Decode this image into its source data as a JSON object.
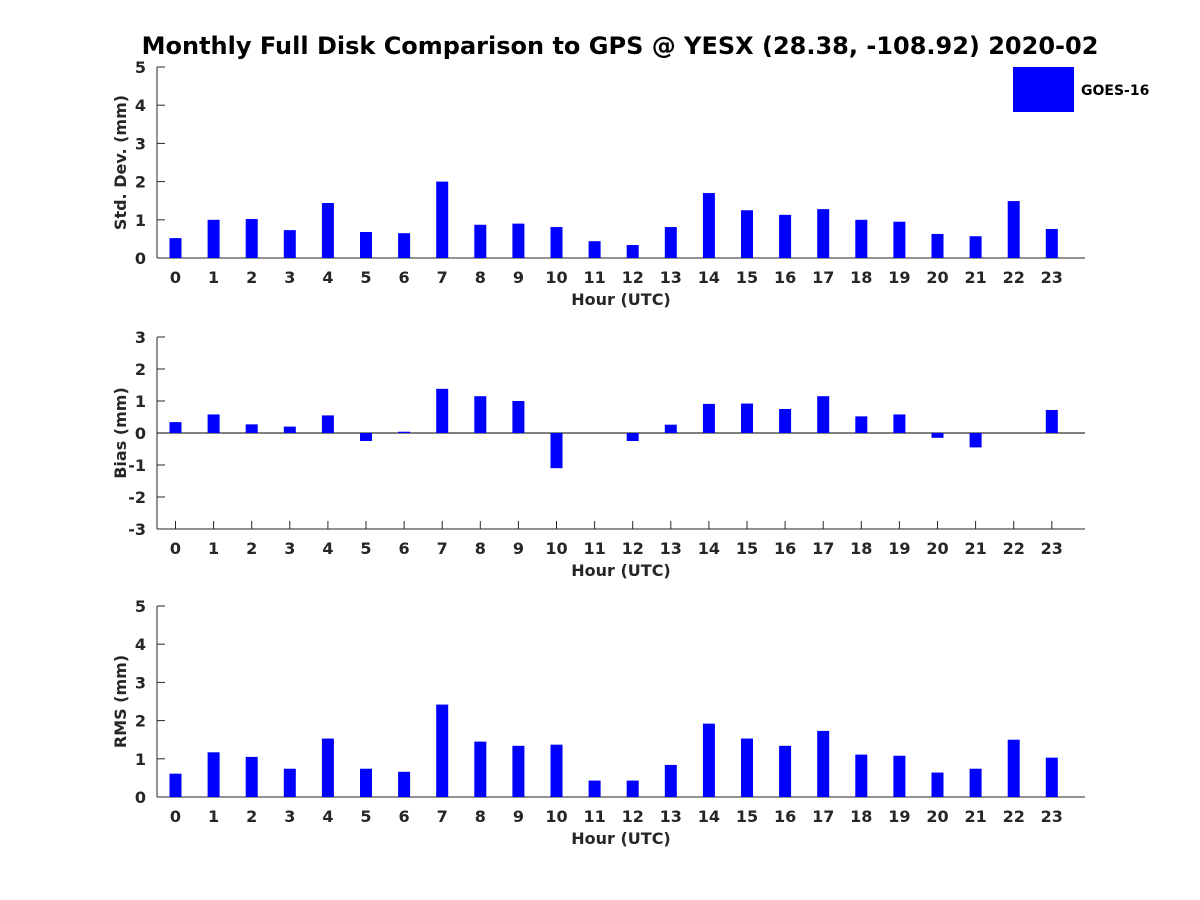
{
  "title": "Monthly Full Disk Comparison to GPS @ YESX (28.38, -108.92) 2020-02",
  "legend": {
    "label": "GOES-16",
    "color": "#0000ff"
  },
  "chart_data": [
    {
      "type": "bar",
      "name": "std-dev",
      "title": "Monthly Full Disk Comparison to GPS @ YESX (28.38, -108.92) 2020-02",
      "xlabel": "Hour (UTC)",
      "ylabel": "Std. Dev. (mm)",
      "ylim": [
        0,
        5
      ],
      "yticks": [
        "0",
        "1",
        "2",
        "3",
        "4",
        "5"
      ],
      "categories": [
        "0",
        "1",
        "2",
        "3",
        "4",
        "5",
        "6",
        "7",
        "8",
        "9",
        "10",
        "11",
        "12",
        "13",
        "14",
        "15",
        "16",
        "17",
        "18",
        "19",
        "20",
        "21",
        "22",
        "23"
      ],
      "series": [
        {
          "name": "GOES-16",
          "values": [
            0.52,
            1.0,
            1.02,
            0.73,
            1.44,
            0.68,
            0.65,
            2.0,
            0.87,
            0.9,
            0.81,
            0.44,
            0.34,
            0.81,
            1.7,
            1.25,
            1.13,
            1.28,
            1.0,
            0.95,
            0.63,
            0.57,
            1.49,
            0.76
          ]
        }
      ],
      "legend": "top-right"
    },
    {
      "type": "bar",
      "name": "bias",
      "xlabel": "Hour (UTC)",
      "ylabel": "Bias (mm)",
      "ylim": [
        -3,
        3
      ],
      "yticks": [
        "-3",
        "-2",
        "-1",
        "0",
        "1",
        "2",
        "3"
      ],
      "zero_line": true,
      "categories": [
        "0",
        "1",
        "2",
        "3",
        "4",
        "5",
        "6",
        "7",
        "8",
        "9",
        "10",
        "11",
        "12",
        "13",
        "14",
        "15",
        "16",
        "17",
        "18",
        "19",
        "20",
        "21",
        "22",
        "23"
      ],
      "series": [
        {
          "name": "GOES-16",
          "values": [
            0.34,
            0.58,
            0.27,
            0.2,
            0.55,
            -0.25,
            0.04,
            1.38,
            1.15,
            1.0,
            -1.1,
            0.0,
            -0.25,
            0.26,
            0.91,
            0.92,
            0.75,
            1.15,
            0.52,
            0.58,
            -0.15,
            -0.45,
            0.0,
            0.72
          ]
        }
      ]
    },
    {
      "type": "bar",
      "name": "rms",
      "xlabel": "Hour (UTC)",
      "ylabel": "RMS (mm)",
      "ylim": [
        0,
        5
      ],
      "yticks": [
        "0",
        "1",
        "2",
        "3",
        "4",
        "5"
      ],
      "categories": [
        "0",
        "1",
        "2",
        "3",
        "4",
        "5",
        "6",
        "7",
        "8",
        "9",
        "10",
        "11",
        "12",
        "13",
        "14",
        "15",
        "16",
        "17",
        "18",
        "19",
        "20",
        "21",
        "22",
        "23"
      ],
      "series": [
        {
          "name": "GOES-16",
          "values": [
            0.61,
            1.17,
            1.05,
            0.74,
            1.53,
            0.74,
            0.66,
            2.42,
            1.45,
            1.34,
            1.37,
            0.43,
            0.43,
            0.84,
            1.92,
            1.53,
            1.34,
            1.73,
            1.11,
            1.08,
            0.64,
            0.74,
            1.5,
            1.03
          ]
        }
      ]
    }
  ]
}
